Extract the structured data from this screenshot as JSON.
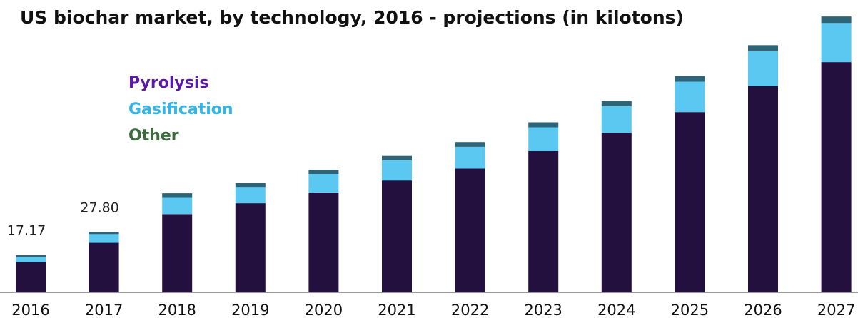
{
  "chart_data": {
    "type": "bar",
    "stacked": true,
    "title": "US biochar market, by technology, 2016 - projections (in kilotons)",
    "xlabel": "",
    "ylabel": "",
    "categories": [
      "2016",
      "2017",
      "2018",
      "2019",
      "2020",
      "2021",
      "2022",
      "2023",
      "2024",
      "2025",
      "2026",
      "2027"
    ],
    "series": [
      {
        "name": "Pyrolysis",
        "color": "#24103f",
        "values": [
          13.9,
          22.8,
          36.0,
          41.0,
          46.0,
          51.5,
          57.0,
          65.0,
          73.5,
          83.0,
          95.0,
          106.0
        ]
      },
      {
        "name": "Gasification",
        "color": "#5bc8f2",
        "values": [
          2.4,
          4.0,
          7.8,
          7.5,
          8.5,
          9.3,
          10.0,
          11.0,
          12.2,
          14.0,
          16.0,
          18.0
        ]
      },
      {
        "name": "Other",
        "color": "#2d6478",
        "values": [
          0.87,
          1.0,
          1.8,
          1.8,
          1.9,
          2.0,
          2.2,
          2.3,
          2.4,
          2.6,
          2.8,
          3.0
        ]
      }
    ],
    "data_labels": [
      {
        "category": "2016",
        "text": "17.17"
      },
      {
        "category": "2017",
        "text": "27.80"
      }
    ],
    "ylim": [
      0,
      130
    ],
    "grid": false,
    "legend_position": "top-left",
    "legend_text_colors": [
      "#5a1aa6",
      "#33b5e5",
      "#3b6b3b"
    ]
  }
}
